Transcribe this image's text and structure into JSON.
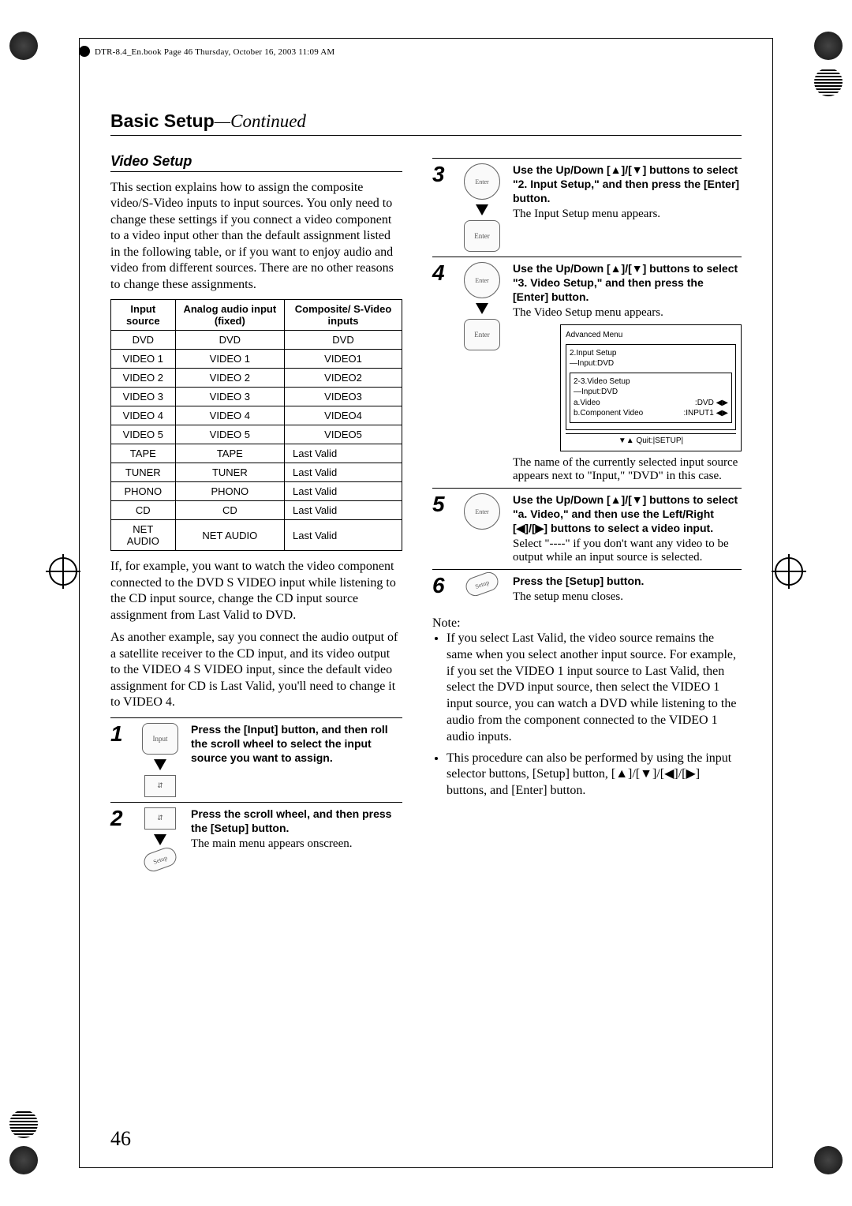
{
  "meta": {
    "header_line": "DTR-8.4_En.book  Page 46  Thursday, October 16, 2003  11:09 AM",
    "page_number": "46"
  },
  "title": {
    "main": "Basic Setup",
    "suffix": "—Continued"
  },
  "left": {
    "heading": "Video Setup",
    "p1": "This section explains how to assign the composite video/S-Video inputs to input sources. You only need to change these settings if you connect a video component to a video input other than the default assignment listed in the following table, or if you want to enjoy audio and video from different sources. There are no other reasons to change these assignments.",
    "table": {
      "headers": [
        "Input source",
        "Analog audio input (fixed)",
        "Composite/ S-Video inputs"
      ],
      "rows": [
        [
          "DVD",
          "DVD",
          "DVD"
        ],
        [
          "VIDEO 1",
          "VIDEO 1",
          "VIDEO1"
        ],
        [
          "VIDEO 2",
          "VIDEO 2",
          "VIDEO2"
        ],
        [
          "VIDEO 3",
          "VIDEO 3",
          "VIDEO3"
        ],
        [
          "VIDEO 4",
          "VIDEO 4",
          "VIDEO4"
        ],
        [
          "VIDEO 5",
          "VIDEO 5",
          "VIDEO5"
        ],
        [
          "TAPE",
          "TAPE",
          "Last Valid"
        ],
        [
          "TUNER",
          "TUNER",
          "Last Valid"
        ],
        [
          "PHONO",
          "PHONO",
          "Last Valid"
        ],
        [
          "CD",
          "CD",
          "Last Valid"
        ],
        [
          "NET AUDIO",
          "NET AUDIO",
          "Last Valid"
        ]
      ]
    },
    "p2": "If, for example, you want to watch the video component connected to the DVD S VIDEO input while listening to the CD input source, change the CD input source assignment from Last Valid to DVD.",
    "p3": "As another example, say you connect the audio output of a satellite receiver to the CD input, and its video output to the VIDEO 4 S VIDEO input, since the default video assignment for CD is Last Valid, you'll need to change it to VIDEO 4.",
    "step1": {
      "num": "1",
      "bold": "Press the [Input] button, and then roll the scroll wheel to select the input source you want to assign.",
      "img_label": "Input"
    },
    "step2": {
      "num": "2",
      "bold": "Press the scroll wheel, and then press the [Setup] button.",
      "body": "The main menu appears onscreen.",
      "img_label": "Setup"
    }
  },
  "right": {
    "step3": {
      "num": "3",
      "bold": "Use the Up/Down [▲]/[▼] buttons to select \"2. Input Setup,\" and then press the [Enter] button.",
      "body": "The Input Setup menu appears.",
      "dpad_label": "Enter",
      "hand_label": "Enter"
    },
    "step4": {
      "num": "4",
      "bold": "Use the Up/Down [▲]/[▼] buttons to select \"3. Video Setup,\" and then press the [Enter] button.",
      "body": "The Video Setup menu appears.",
      "dpad_label": "Enter",
      "hand_label": "Enter",
      "menu": {
        "title": "Advanced Menu",
        "l1": "2.Input Setup",
        "l1b": "—Input:DVD",
        "l2": "2-3.Video Setup",
        "l2b": "—Input:DVD",
        "a_label": "a.Video",
        "a_value": ":DVD",
        "b_label": "b.Component Video",
        "b_value": ":INPUT1",
        "foot": "▼▲  Quit:|SETUP|"
      },
      "after": "The name of the currently selected input source appears next to \"Input,\" \"DVD\" in this case."
    },
    "step5": {
      "num": "5",
      "bold": "Use the Up/Down [▲]/[▼] buttons to select \"a. Video,\" and then use the Left/Right [◀]/[▶] buttons to select a video input.",
      "body": "Select \"----\" if you don't want any video to be output while an input source is selected.",
      "dpad_label": "Enter"
    },
    "step6": {
      "num": "6",
      "bold": "Press the [Setup] button.",
      "body": "The setup menu closes.",
      "img_label": "Setup"
    },
    "note_label": "Note:",
    "note1": "If you select Last Valid, the video source remains the same when you select another input source. For example, if you set the VIDEO 1 input source to Last Valid, then select the DVD input source, then select the VIDEO 1 input source, you can watch a DVD while listening to the audio from the component connected to the VIDEO 1 audio inputs.",
    "note2": "This procedure can also be performed by using the input selector buttons, [Setup] button, [▲]/[▼]/[◀]/[▶] buttons, and [Enter] button."
  }
}
